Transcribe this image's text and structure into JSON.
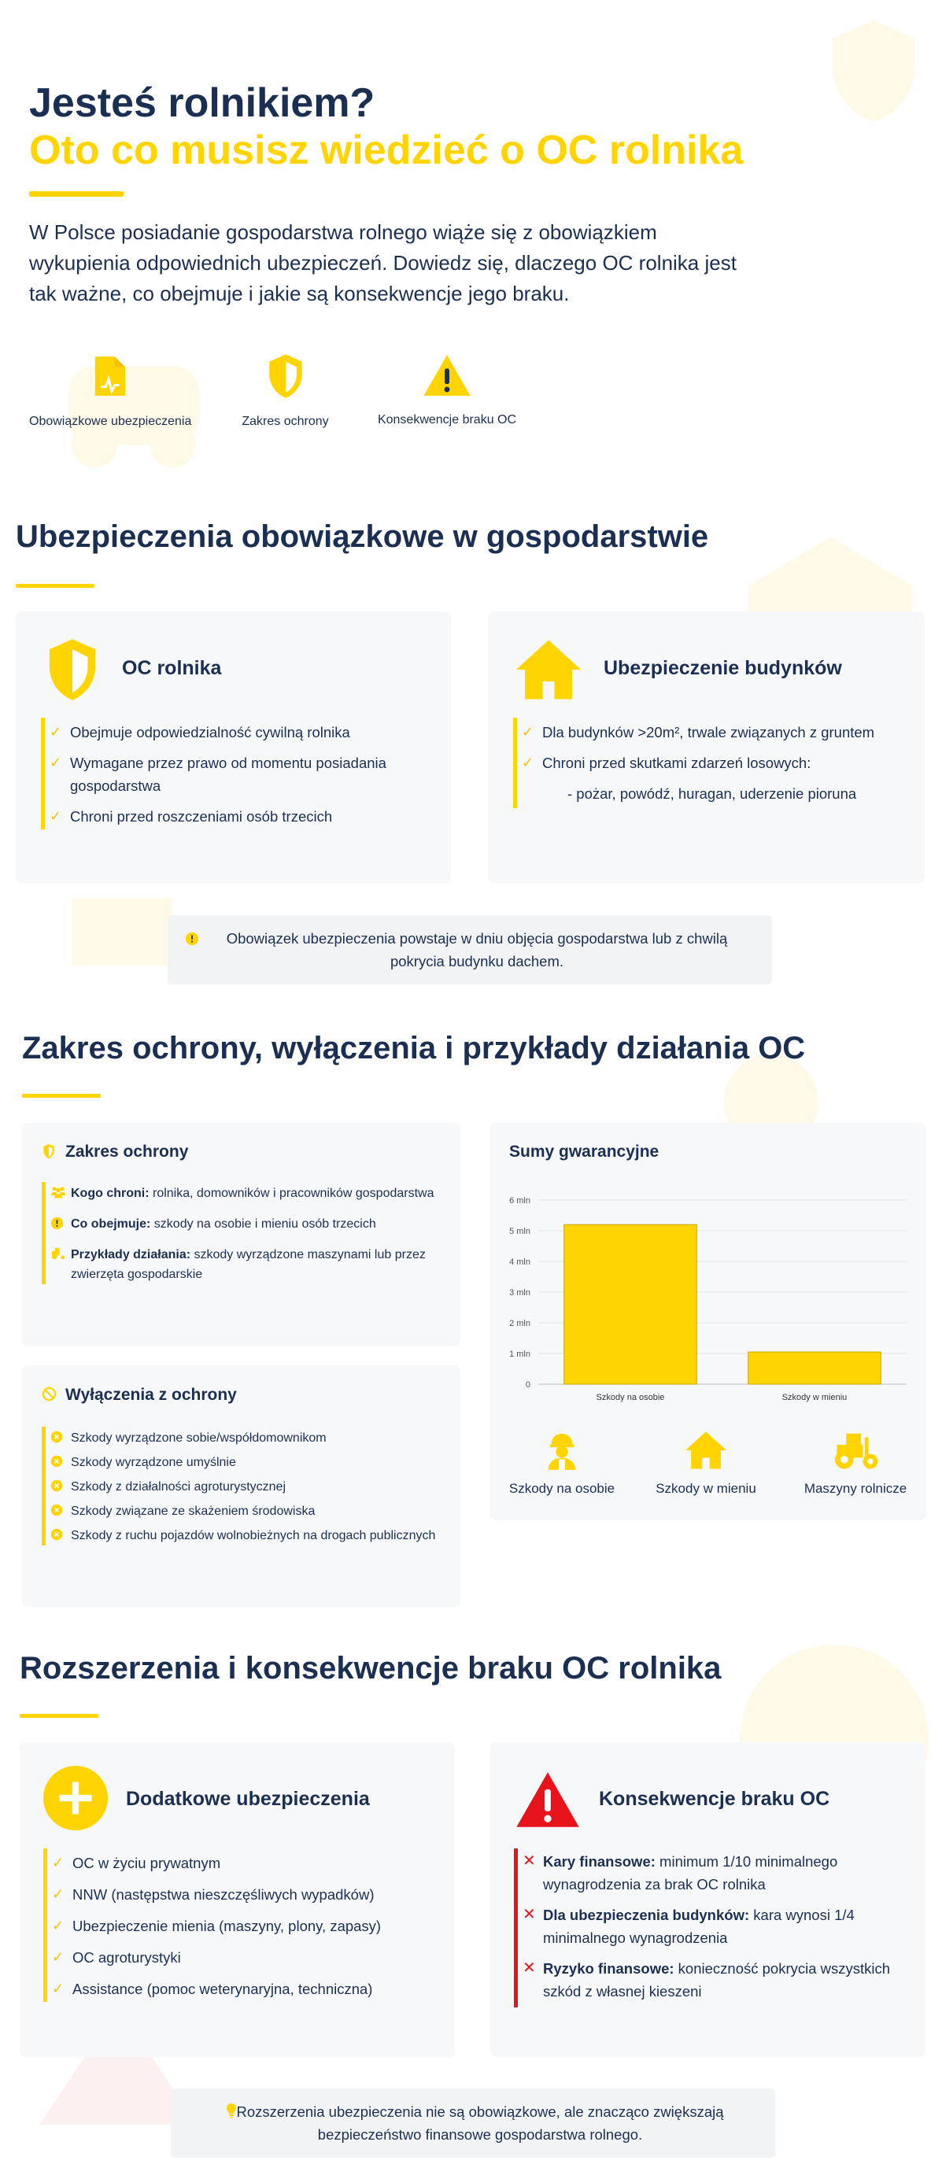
{
  "hero": {
    "line1": "Jesteś rolnikiem?",
    "line2": "Oto co musisz wiedzieć o OC rolnika",
    "intro": "W Polsce posiadanie gospodarstwa rolnego wiąże się z obowiązkiem wykupienia odpowiednich ubezpieczeń. Dowiedz się, dlaczego OC rolnika jest tak ważne, co obejmuje i jakie są konsekwencje jego braku.",
    "icons": [
      {
        "icon": "document-icon",
        "label": "Obowiązkowe ubezpieczenia"
      },
      {
        "icon": "shield-icon",
        "label": "Zakres ochrony"
      },
      {
        "icon": "warning-icon",
        "label": "Konsekwencje braku OC"
      }
    ]
  },
  "section1": {
    "title": "Ubezpieczenia obowiązkowe w gospodarstwie",
    "card_oc": {
      "title": "OC rolnika",
      "items": [
        "Obejmuje odpowiedzialność cywilną rolnika",
        "Wymagane przez prawo od momentu posiadania gospodarstwa",
        "Chroni przed roszczeniami osób trzecich"
      ]
    },
    "card_buildings": {
      "title": "Ubezpieczenie budynków",
      "items": [
        "Dla budynków >20m², trwale związanych z gruntem",
        "Chroni przed skutkami zdarzeń losowych:"
      ],
      "subitem": "- pożar, powódź, huragan, uderzenie pioruna"
    },
    "note": "Obowiązek ubezpieczenia powstaje w dniu objęcia gospodarstwa lub z chwilą pokrycia budynku dachem."
  },
  "section2": {
    "title": "Zakres ochrony, wyłączenia i przykłady działania OC",
    "scope": {
      "title": "Zakres ochrony",
      "items": [
        {
          "bold": "Kogo chroni:",
          "text": " rolnika, domowników i pracowników gospodarstwa"
        },
        {
          "bold": "Co obejmuje:",
          "text": " szkody na osobie i mieniu osób trzecich"
        },
        {
          "bold": "Przykłady działania:",
          "text": " szkody wyrządzone maszynami lub przez zwierzęta gospodarskie"
        }
      ]
    },
    "exclusions": {
      "title": "Wyłączenia z ochrony",
      "items": [
        "Szkody wyrządzone sobie/współdomownikom",
        "Szkody wyrządzone umyślnie",
        "Szkody z działalności agroturystycznej",
        "Szkody związane ze skażeniem środowiska",
        "Szkody z ruchu pojazdów wolnobieżnych na drogach publicznych"
      ]
    },
    "chart_title": "Sumy gwarancyjne",
    "stat_icons": [
      {
        "icon": "worker-icon",
        "label": "Szkody na osobie"
      },
      {
        "icon": "house-icon",
        "label": "Szkody w mieniu"
      },
      {
        "icon": "tractor-icon",
        "label": "Maszyny rolnicze"
      }
    ]
  },
  "chart_data": {
    "type": "bar",
    "title": "Sumy gwarancyjne",
    "categories": [
      "Szkody na osobie",
      "Szkody w mieniu"
    ],
    "values": [
      5.2,
      1.05
    ],
    "ylim": [
      0,
      6
    ],
    "yticks": [
      "0",
      "1 mln",
      "2 mln",
      "3 mln",
      "4 mln",
      "5 mln",
      "6 mln"
    ],
    "grid": true,
    "bar_color": "#ffd400",
    "bar_border": "#c9a800"
  },
  "section3": {
    "title": "Rozszerzenia i konsekwencje braku OC rolnika",
    "extras": {
      "title": "Dodatkowe ubezpieczenia",
      "items": [
        "OC w życiu prywatnym",
        "NNW (następstwa nieszczęśliwych wypadków)",
        "Ubezpieczenie mienia (maszyny, plony, zapasy)",
        "OC agroturystyki",
        "Assistance (pomoc weterynaryjna, techniczna)"
      ]
    },
    "consequences": {
      "title": "Konsekwencje braku OC",
      "items": [
        {
          "bold": "Kary finansowe:",
          "text": " minimum 1/10 minimalnego wynagrodzenia za brak OC rolnika"
        },
        {
          "bold": "Dla ubezpieczenia budynków:",
          "text": " kara wynosi 1/4 minimalnego wynagrodzenia"
        },
        {
          "bold": "Ryzyko finansowe:",
          "text": " konieczność pokrycia wszystkich szkód z własnej kieszeni"
        }
      ]
    },
    "note": "Rozszerzenia ubezpieczenia nie są obowiązkowe, ale znacząco zwiększają bezpieczeństwo finansowe gospodarstwa rolnego."
  },
  "colors": {
    "navy": "#1b2f52",
    "accent": "#ffd400",
    "danger": "#e8141c",
    "card_bg": "#f7f8fa"
  }
}
